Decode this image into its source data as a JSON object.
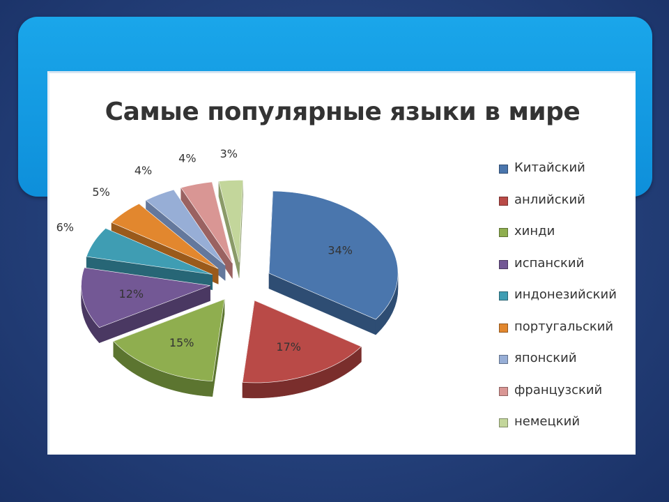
{
  "chart_data": {
    "type": "pie",
    "title": "Самые популярные языки в мире",
    "slices": [
      {
        "label": "Китайский",
        "value": 34,
        "display": "34%",
        "color": "#4a76ad",
        "side": "#2e4d73"
      },
      {
        "label": "анлийский",
        "value": 17,
        "display": "17%",
        "color": "#b94a47",
        "side": "#7a2e2c"
      },
      {
        "label": "хинди",
        "value": 15,
        "display": "15%",
        "color": "#8fae4f",
        "side": "#5c7530"
      },
      {
        "label": "испанский",
        "value": 12,
        "display": "12%",
        "color": "#735895",
        "side": "#4a3862"
      },
      {
        "label": "индонезийский",
        "value": 6,
        "display": "6%",
        "color": "#3f9db3",
        "side": "#276676"
      },
      {
        "label": "португальский",
        "value": 5,
        "display": "5%",
        "color": "#e2872e",
        "side": "#9a5a1b"
      },
      {
        "label": "японский",
        "value": 4,
        "display": "4%",
        "color": "#97aed6",
        "side": "#64789c"
      },
      {
        "label": "французский",
        "value": 4,
        "display": "4%",
        "color": "#d99694",
        "side": "#9a6261"
      },
      {
        "label": "немецкий",
        "value": 3,
        "display": "3%",
        "color": "#c3d69b",
        "side": "#8a9a68"
      }
    ],
    "legend_position": "right",
    "exploded": true,
    "style": "3d"
  }
}
